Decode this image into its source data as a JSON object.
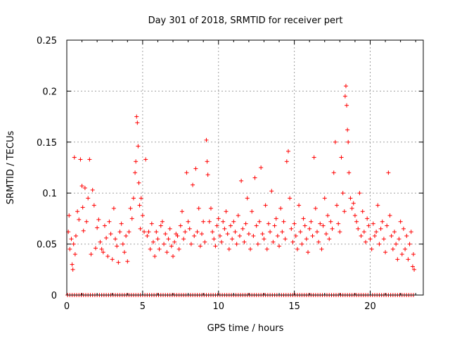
{
  "chart_data": {
    "type": "scatter",
    "title": "Day 301 of 2018, SRMTID for receiver pert",
    "xlabel": "GPS time / hours",
    "ylabel": "SRMTID / TECUs",
    "xlim": [
      0,
      23.5
    ],
    "ylim": [
      0,
      0.25
    ],
    "xticks": [
      0,
      5,
      10,
      15,
      20
    ],
    "xtick_labels": [
      "0",
      "5",
      "10",
      "15",
      "20"
    ],
    "yticks": [
      0,
      0.05,
      0.1,
      0.15,
      0.2,
      0.25
    ],
    "ytick_labels": [
      "0",
      "0.05",
      "0.1",
      "0.15",
      "0.2",
      "0.25"
    ],
    "grid": true,
    "marker": "+",
    "color": "#ff0000",
    "series": [
      {
        "name": "SRMTID",
        "points": [
          [
            0.1,
            0.062
          ],
          [
            0.15,
            0.078
          ],
          [
            0.2,
            0.045
          ],
          [
            0.3,
            0.055
          ],
          [
            0.35,
            0.03
          ],
          [
            0.4,
            0.025
          ],
          [
            0.45,
            0.05
          ],
          [
            0.5,
            0.135
          ],
          [
            0.55,
            0.04
          ],
          [
            0.6,
            0.058
          ],
          [
            0.7,
            0.082
          ],
          [
            0.8,
            0.074
          ],
          [
            0.9,
            0.133
          ],
          [
            1.0,
            0.107
          ],
          [
            1.05,
            0.086
          ],
          [
            1.1,
            0.063
          ],
          [
            1.2,
            0.105
          ],
          [
            1.3,
            0.072
          ],
          [
            1.4,
            0.095
          ],
          [
            1.5,
            0.133
          ],
          [
            1.6,
            0.04
          ],
          [
            1.7,
            0.103
          ],
          [
            1.8,
            0.088
          ],
          [
            1.9,
            0.046
          ],
          [
            2.0,
            0.066
          ],
          [
            2.1,
            0.074
          ],
          [
            2.2,
            0.052
          ],
          [
            2.3,
            0.045
          ],
          [
            2.4,
            0.042
          ],
          [
            2.5,
            0.068
          ],
          [
            2.6,
            0.056
          ],
          [
            2.7,
            0.038
          ],
          [
            2.8,
            0.072
          ],
          [
            2.9,
            0.06
          ],
          [
            3.0,
            0.035
          ],
          [
            3.1,
            0.085
          ],
          [
            3.2,
            0.055
          ],
          [
            3.3,
            0.048
          ],
          [
            3.4,
            0.032
          ],
          [
            3.5,
            0.062
          ],
          [
            3.6,
            0.07
          ],
          [
            3.7,
            0.05
          ],
          [
            3.8,
            0.042
          ],
          [
            3.9,
            0.058
          ],
          [
            4.0,
            0.033
          ],
          [
            4.1,
            0.062
          ],
          [
            4.2,
            0.085
          ],
          [
            4.3,
            0.075
          ],
          [
            4.4,
            0.095
          ],
          [
            4.5,
            0.12
          ],
          [
            4.55,
            0.131
          ],
          [
            4.6,
            0.175
          ],
          [
            4.65,
            0.169
          ],
          [
            4.7,
            0.146
          ],
          [
            4.75,
            0.11
          ],
          [
            4.8,
            0.088
          ],
          [
            4.85,
            0.065
          ],
          [
            4.9,
            0.095
          ],
          [
            5.0,
            0.078
          ],
          [
            5.1,
            0.062
          ],
          [
            5.2,
            0.133
          ],
          [
            5.3,
            0.058
          ],
          [
            5.4,
            0.062
          ],
          [
            5.5,
            0.045
          ],
          [
            5.6,
            0.07
          ],
          [
            5.7,
            0.052
          ],
          [
            5.8,
            0.038
          ],
          [
            5.9,
            0.062
          ],
          [
            6.0,
            0.055
          ],
          [
            6.1,
            0.045
          ],
          [
            6.2,
            0.068
          ],
          [
            6.3,
            0.072
          ],
          [
            6.4,
            0.05
          ],
          [
            6.5,
            0.06
          ],
          [
            6.6,
            0.042
          ],
          [
            6.7,
            0.055
          ],
          [
            6.8,
            0.065
          ],
          [
            6.9,
            0.048
          ],
          [
            7.0,
            0.038
          ],
          [
            7.1,
            0.052
          ],
          [
            7.2,
            0.06
          ],
          [
            7.3,
            0.058
          ],
          [
            7.4,
            0.045
          ],
          [
            7.5,
            0.068
          ],
          [
            7.6,
            0.082
          ],
          [
            7.7,
            0.055
          ],
          [
            7.8,
            0.062
          ],
          [
            7.9,
            0.12
          ],
          [
            8.0,
            0.072
          ],
          [
            8.1,
            0.065
          ],
          [
            8.2,
            0.05
          ],
          [
            8.3,
            0.108
          ],
          [
            8.4,
            0.058
          ],
          [
            8.5,
            0.124
          ],
          [
            8.6,
            0.062
          ],
          [
            8.7,
            0.085
          ],
          [
            8.8,
            0.048
          ],
          [
            8.9,
            0.06
          ],
          [
            9.0,
            0.072
          ],
          [
            9.1,
            0.052
          ],
          [
            9.2,
            0.152
          ],
          [
            9.25,
            0.131
          ],
          [
            9.3,
            0.118
          ],
          [
            9.4,
            0.072
          ],
          [
            9.5,
            0.085
          ],
          [
            9.6,
            0.062
          ],
          [
            9.7,
            0.055
          ],
          [
            9.8,
            0.048
          ],
          [
            9.9,
            0.068
          ],
          [
            10.0,
            0.075
          ],
          [
            10.1,
            0.058
          ],
          [
            10.2,
            0.052
          ],
          [
            10.3,
            0.072
          ],
          [
            10.4,
            0.065
          ],
          [
            10.5,
            0.082
          ],
          [
            10.6,
            0.06
          ],
          [
            10.7,
            0.045
          ],
          [
            10.8,
            0.068
          ],
          [
            10.9,
            0.055
          ],
          [
            11.0,
            0.072
          ],
          [
            11.1,
            0.062
          ],
          [
            11.2,
            0.05
          ],
          [
            11.3,
            0.078
          ],
          [
            11.4,
            0.058
          ],
          [
            11.5,
            0.112
          ],
          [
            11.6,
            0.065
          ],
          [
            11.7,
            0.052
          ],
          [
            11.8,
            0.07
          ],
          [
            11.9,
            0.095
          ],
          [
            12.0,
            0.06
          ],
          [
            12.1,
            0.045
          ],
          [
            12.2,
            0.082
          ],
          [
            12.3,
            0.058
          ],
          [
            12.4,
            0.115
          ],
          [
            12.5,
            0.068
          ],
          [
            12.6,
            0.05
          ],
          [
            12.7,
            0.072
          ],
          [
            12.8,
            0.125
          ],
          [
            12.9,
            0.06
          ],
          [
            13.0,
            0.055
          ],
          [
            13.1,
            0.088
          ],
          [
            13.2,
            0.045
          ],
          [
            13.3,
            0.07
          ],
          [
            13.4,
            0.062
          ],
          [
            13.5,
            0.102
          ],
          [
            13.6,
            0.052
          ],
          [
            13.7,
            0.068
          ],
          [
            13.8,
            0.075
          ],
          [
            13.9,
            0.058
          ],
          [
            14.0,
            0.048
          ],
          [
            14.1,
            0.085
          ],
          [
            14.2,
            0.062
          ],
          [
            14.3,
            0.072
          ],
          [
            14.4,
            0.055
          ],
          [
            14.5,
            0.131
          ],
          [
            14.6,
            0.141
          ],
          [
            14.7,
            0.095
          ],
          [
            14.8,
            0.065
          ],
          [
            14.9,
            0.052
          ],
          [
            15.0,
            0.07
          ],
          [
            15.1,
            0.058
          ],
          [
            15.2,
            0.045
          ],
          [
            15.3,
            0.088
          ],
          [
            15.4,
            0.062
          ],
          [
            15.5,
            0.05
          ],
          [
            15.6,
            0.075
          ],
          [
            15.7,
            0.068
          ],
          [
            15.8,
            0.055
          ],
          [
            15.9,
            0.042
          ],
          [
            16.0,
            0.065
          ],
          [
            16.1,
            0.072
          ],
          [
            16.2,
            0.058
          ],
          [
            16.3,
            0.135
          ],
          [
            16.4,
            0.085
          ],
          [
            16.5,
            0.062
          ],
          [
            16.6,
            0.052
          ],
          [
            16.7,
            0.07
          ],
          [
            16.8,
            0.045
          ],
          [
            16.9,
            0.068
          ],
          [
            17.0,
            0.095
          ],
          [
            17.1,
            0.06
          ],
          [
            17.2,
            0.078
          ],
          [
            17.3,
            0.055
          ],
          [
            17.4,
            0.072
          ],
          [
            17.5,
            0.065
          ],
          [
            17.6,
            0.12
          ],
          [
            17.7,
            0.15
          ],
          [
            17.8,
            0.088
          ],
          [
            17.9,
            0.07
          ],
          [
            18.0,
            0.062
          ],
          [
            18.1,
            0.135
          ],
          [
            18.2,
            0.1
          ],
          [
            18.3,
            0.082
          ],
          [
            18.35,
            0.195
          ],
          [
            18.4,
            0.205
          ],
          [
            18.45,
            0.186
          ],
          [
            18.5,
            0.162
          ],
          [
            18.55,
            0.15
          ],
          [
            18.6,
            0.12
          ],
          [
            18.7,
            0.095
          ],
          [
            18.8,
            0.085
          ],
          [
            18.9,
            0.09
          ],
          [
            19.0,
            0.078
          ],
          [
            19.1,
            0.072
          ],
          [
            19.2,
            0.065
          ],
          [
            19.3,
            0.1
          ],
          [
            19.4,
            0.058
          ],
          [
            19.5,
            0.082
          ],
          [
            19.6,
            0.062
          ],
          [
            19.7,
            0.052
          ],
          [
            19.8,
            0.075
          ],
          [
            19.9,
            0.068
          ],
          [
            20.0,
            0.055
          ],
          [
            20.1,
            0.045
          ],
          [
            20.2,
            0.07
          ],
          [
            20.3,
            0.058
          ],
          [
            20.4,
            0.062
          ],
          [
            20.5,
            0.088
          ],
          [
            20.6,
            0.05
          ],
          [
            20.7,
            0.065
          ],
          [
            20.8,
            0.072
          ],
          [
            20.9,
            0.055
          ],
          [
            21.0,
            0.042
          ],
          [
            21.1,
            0.068
          ],
          [
            21.2,
            0.12
          ],
          [
            21.3,
            0.078
          ],
          [
            21.4,
            0.058
          ],
          [
            21.5,
            0.045
          ],
          [
            21.6,
            0.062
          ],
          [
            21.7,
            0.05
          ],
          [
            21.8,
            0.035
          ],
          [
            21.9,
            0.055
          ],
          [
            22.0,
            0.072
          ],
          [
            22.1,
            0.04
          ],
          [
            22.2,
            0.065
          ],
          [
            22.3,
            0.045
          ],
          [
            22.4,
            0.058
          ],
          [
            22.5,
            0.035
          ],
          [
            22.6,
            0.05
          ],
          [
            22.7,
            0.062
          ],
          [
            22.8,
            0.028
          ],
          [
            22.85,
            0.04
          ],
          [
            22.9,
            0.025
          ]
        ]
      }
    ],
    "zero_points_x": [
      0.05,
      0.2,
      0.35,
      0.5,
      0.65,
      0.8,
      0.95,
      1.1,
      1.25,
      1.4,
      1.55,
      1.7,
      1.85,
      2.0,
      2.15,
      2.3,
      2.45,
      2.6,
      2.75,
      2.9,
      3.05,
      3.2,
      3.35,
      3.5,
      3.65,
      3.8,
      3.95,
      4.1,
      4.25,
      4.4,
      4.55,
      4.7,
      4.85,
      5.0,
      5.15,
      5.3,
      5.45,
      5.6,
      5.75,
      5.9,
      6.05,
      6.2,
      6.35,
      6.5,
      6.65,
      6.8,
      6.95,
      7.1,
      7.25,
      7.4,
      7.55,
      7.7,
      7.85,
      8.0,
      8.15,
      8.3,
      8.45,
      8.6,
      8.75,
      8.9,
      9.05,
      9.2,
      9.35,
      9.5,
      9.65,
      9.8,
      9.95,
      10.1,
      10.25,
      10.4,
      10.55,
      10.7,
      10.85,
      11.0,
      11.15,
      11.3,
      11.45,
      11.6,
      11.75,
      11.9,
      12.05,
      12.2,
      12.35,
      12.5,
      12.65,
      12.8,
      12.95,
      13.1,
      13.25,
      13.4,
      13.55,
      13.7,
      13.85,
      14.0,
      14.15,
      14.3,
      14.45,
      14.6,
      14.75,
      14.9,
      15.05,
      15.2,
      15.35,
      15.5,
      15.65,
      15.8,
      15.95,
      16.1,
      16.25,
      16.4,
      16.55,
      16.7,
      16.85,
      17.0,
      17.15,
      17.3,
      17.45,
      17.6,
      17.75,
      17.9,
      18.05,
      18.2,
      18.35,
      18.5,
      18.65,
      18.8,
      18.95,
      19.1,
      19.25,
      19.4,
      19.55,
      19.7,
      19.85,
      20.0,
      20.15,
      20.3,
      20.45,
      20.6,
      20.75,
      20.9,
      21.05,
      21.2,
      21.35,
      21.5,
      21.65,
      21.8,
      21.95,
      22.1,
      22.25,
      22.4,
      22.55,
      22.7,
      22.85
    ]
  }
}
